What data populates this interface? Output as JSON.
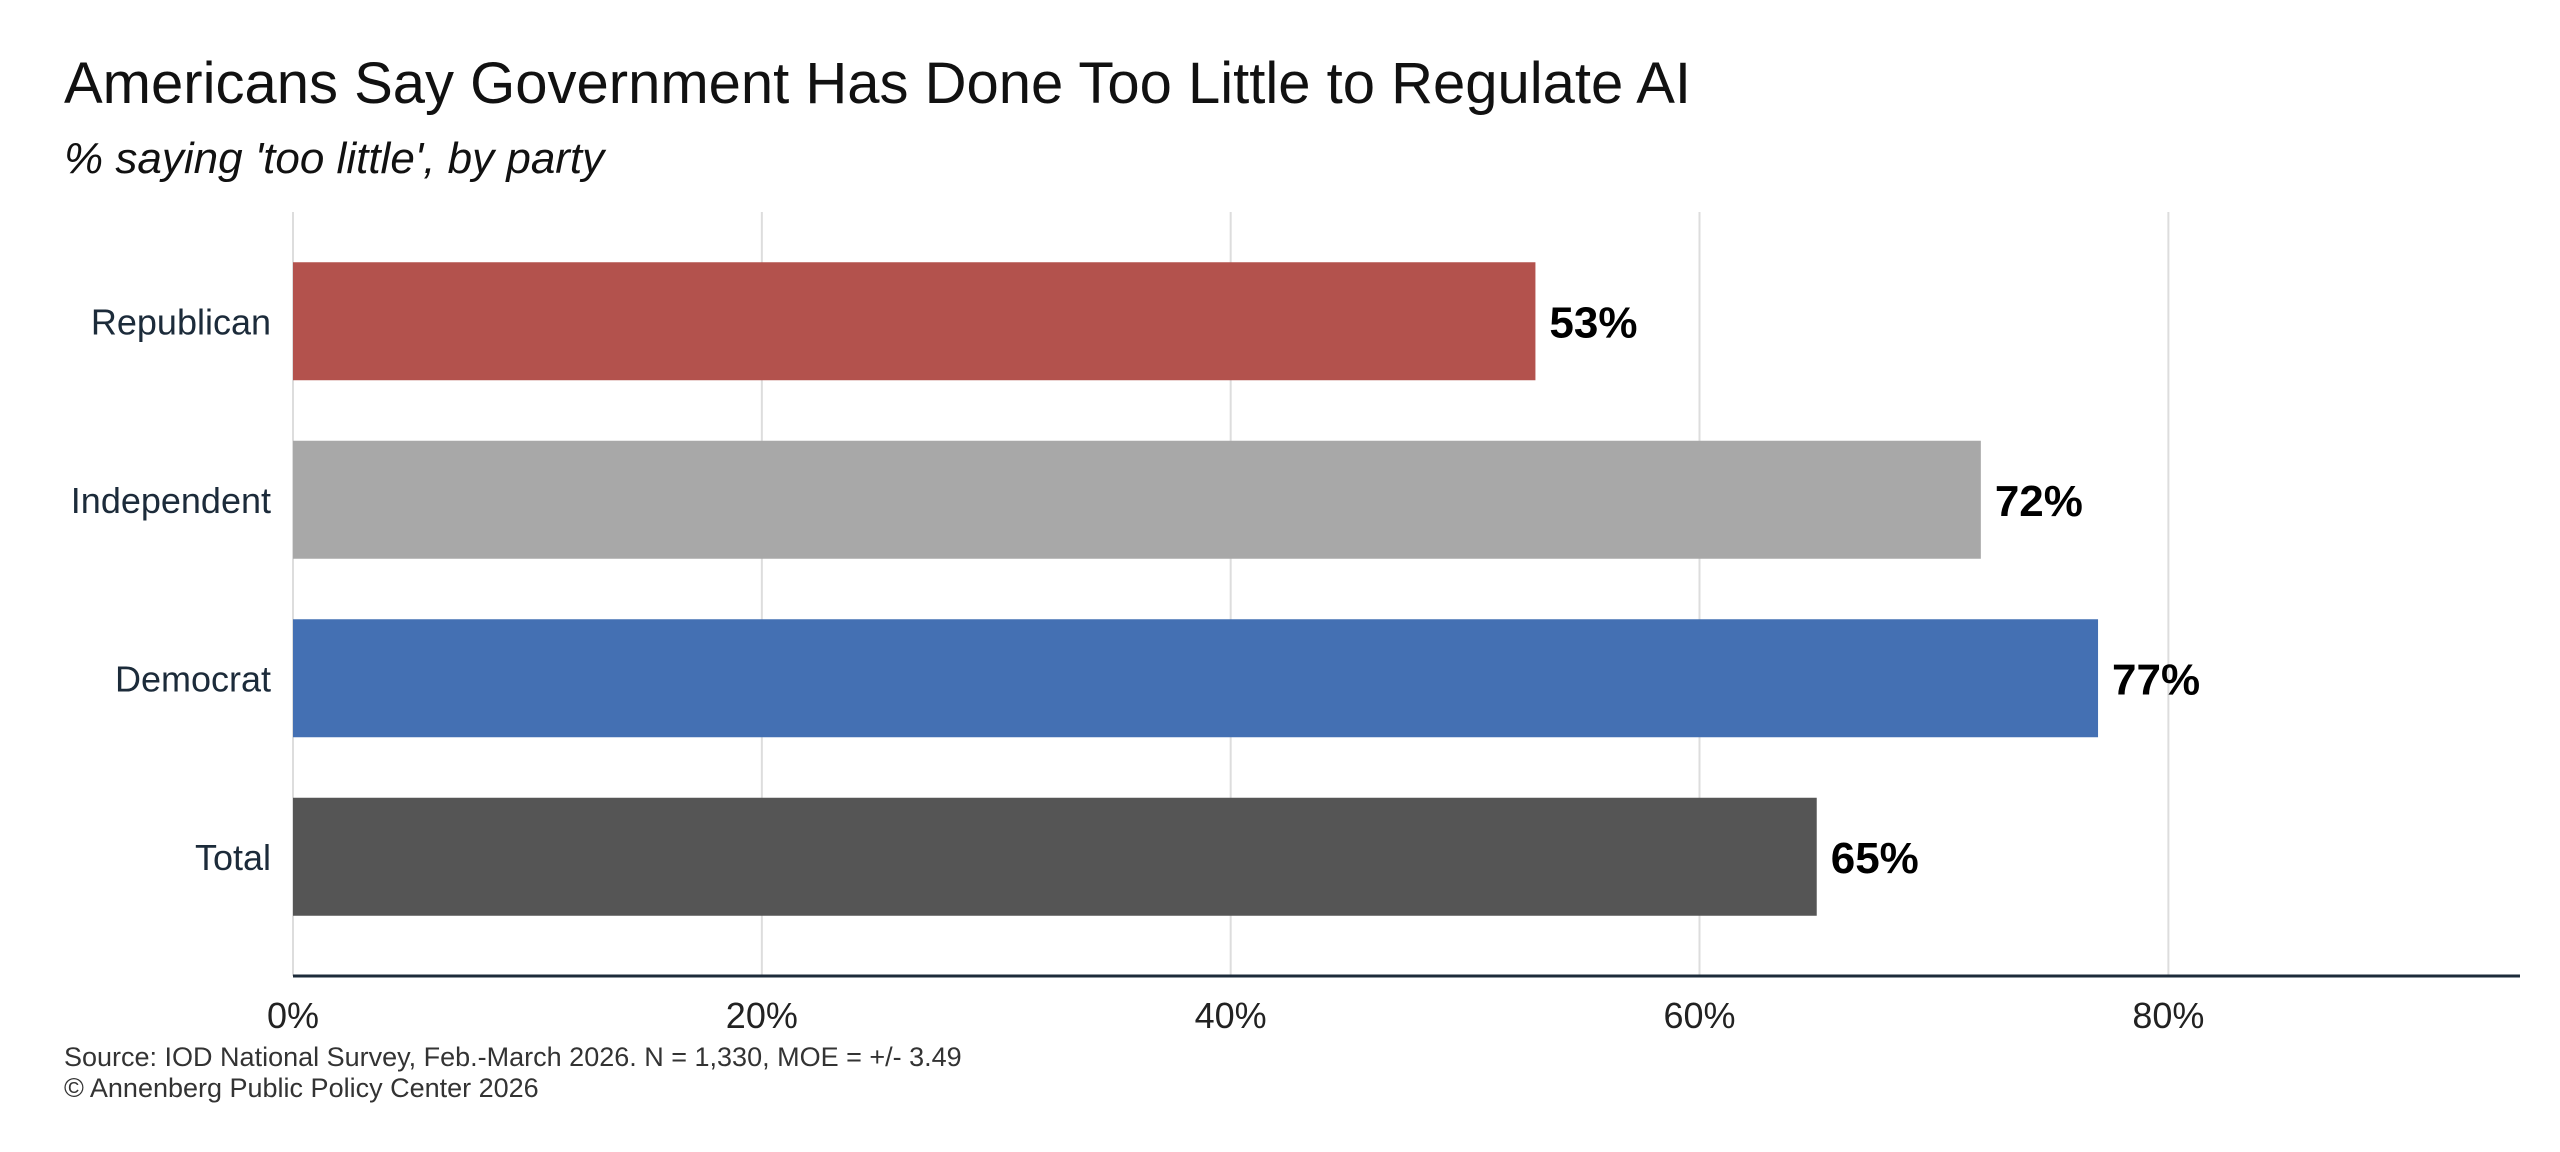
{
  "title": "Americans Say Government Has Done Too Little to Regulate AI",
  "subtitle": "% saying 'too little', by party",
  "source": {
    "line1": "Source: IOD National Survey, Feb.-March 2026. N = 1,330, MOE = +/- 3.49",
    "line2": "© Annenberg Public Policy Center 2026"
  },
  "chart_data": {
    "type": "bar",
    "orientation": "horizontal",
    "title": "Americans Say Government Has Done Too Little to Regulate AI",
    "subtitle": "% saying 'too little', by party",
    "categories": [
      "Republican",
      "Independent",
      "Democrat",
      "Total"
    ],
    "values": [
      53,
      72,
      77,
      65
    ],
    "data_labels": [
      "53%",
      "72%",
      "77%",
      "65%"
    ],
    "colors": [
      "#b3524d",
      "#a8a8a8",
      "#4470b3",
      "#555555"
    ],
    "x_ticks": [
      0,
      20,
      40,
      60,
      80
    ],
    "x_tick_labels": [
      "0%",
      "20%",
      "40%",
      "60%",
      "80%"
    ],
    "xlim": [
      0,
      95
    ],
    "xlabel": "",
    "ylabel": "",
    "grid": "vertical",
    "legend": "none"
  }
}
